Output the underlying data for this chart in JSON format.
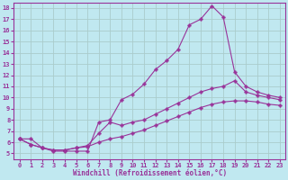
{
  "xlabel": "Windchill (Refroidissement éolien,°C)",
  "background_color": "#c0e8f0",
  "grid_color": "#aacccc",
  "line_color": "#993399",
  "xlim": [
    -0.5,
    23.5
  ],
  "ylim": [
    4.5,
    18.5
  ],
  "xticks": [
    0,
    1,
    2,
    3,
    4,
    5,
    6,
    7,
    8,
    9,
    10,
    11,
    12,
    13,
    14,
    15,
    16,
    17,
    18,
    19,
    20,
    21,
    22,
    23
  ],
  "yticks": [
    5,
    6,
    7,
    8,
    9,
    10,
    11,
    12,
    13,
    14,
    15,
    16,
    17,
    18
  ],
  "line1_x": [
    0,
    1,
    2,
    3,
    4,
    5,
    6,
    7,
    8,
    9,
    10,
    11,
    12,
    13,
    14,
    15,
    16,
    17,
    18,
    19,
    20,
    21,
    22,
    23
  ],
  "line1_y": [
    6.3,
    6.3,
    5.5,
    5.2,
    5.2,
    5.2,
    5.2,
    7.8,
    8.0,
    9.8,
    10.3,
    11.2,
    12.5,
    13.3,
    14.3,
    16.5,
    17.0,
    18.2,
    17.2,
    12.3,
    11.0,
    10.5,
    10.2,
    10.0
  ],
  "line2_x": [
    0,
    1,
    2,
    3,
    4,
    5,
    6,
    7,
    8,
    9,
    10,
    11,
    12,
    13,
    14,
    15,
    16,
    17,
    18,
    19,
    20,
    21,
    22,
    23
  ],
  "line2_y": [
    6.3,
    5.8,
    5.5,
    5.3,
    5.3,
    5.5,
    5.7,
    6.8,
    7.8,
    7.5,
    7.8,
    8.0,
    8.5,
    9.0,
    9.5,
    10.0,
    10.5,
    10.8,
    11.0,
    11.5,
    10.5,
    10.2,
    10.0,
    9.8
  ],
  "line3_x": [
    0,
    1,
    2,
    3,
    4,
    5,
    6,
    7,
    8,
    9,
    10,
    11,
    12,
    13,
    14,
    15,
    16,
    17,
    18,
    19,
    20,
    21,
    22,
    23
  ],
  "line3_y": [
    6.3,
    5.8,
    5.5,
    5.3,
    5.3,
    5.5,
    5.6,
    6.0,
    6.3,
    6.5,
    6.8,
    7.1,
    7.5,
    7.9,
    8.3,
    8.7,
    9.1,
    9.4,
    9.6,
    9.7,
    9.7,
    9.6,
    9.4,
    9.3
  ]
}
